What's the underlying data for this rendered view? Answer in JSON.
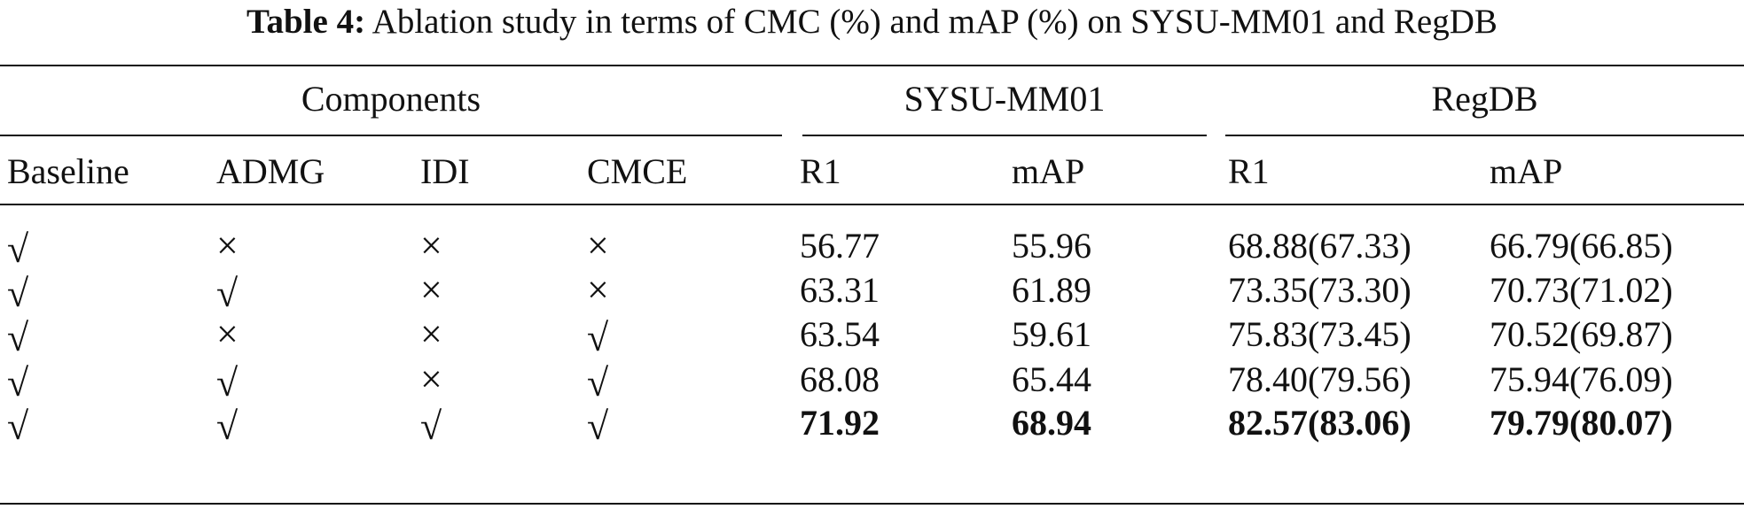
{
  "caption": {
    "label": "Table 4:",
    "text": "Ablation study in terms of CMC (%) and mAP (%) on SYSU-MM01 and RegDB"
  },
  "header": {
    "groups": [
      "Components",
      "SYSU-MM01",
      "RegDB"
    ],
    "columns": [
      "Baseline",
      "ADMG",
      "IDI",
      "CMCE",
      "R1",
      "mAP",
      "R1",
      "mAP"
    ]
  },
  "rows": [
    {
      "baseline": "√",
      "admg": "×",
      "idi": "×",
      "cmce": "×",
      "sysu_r1": "56.77",
      "sysu_map": "55.96",
      "regdb_r1": "68.88(67.33)",
      "regdb_map": "66.79(66.85)",
      "bold": false
    },
    {
      "baseline": "√",
      "admg": "√",
      "idi": "×",
      "cmce": "×",
      "sysu_r1": "63.31",
      "sysu_map": "61.89",
      "regdb_r1": "73.35(73.30)",
      "regdb_map": "70.73(71.02)",
      "bold": false
    },
    {
      "baseline": "√",
      "admg": "×",
      "idi": "×",
      "cmce": "√",
      "sysu_r1": "63.54",
      "sysu_map": "59.61",
      "regdb_r1": "75.83(73.45)",
      "regdb_map": "70.52(69.87)",
      "bold": false
    },
    {
      "baseline": "√",
      "admg": "√",
      "idi": "×",
      "cmce": "√",
      "sysu_r1": "68.08",
      "sysu_map": "65.44",
      "regdb_r1": "78.40(79.56)",
      "regdb_map": "75.94(76.09)",
      "bold": false
    },
    {
      "baseline": "√",
      "admg": "√",
      "idi": "√",
      "cmce": "√",
      "sysu_r1": "71.92",
      "sysu_map": "68.94",
      "regdb_r1": "82.57(83.06)",
      "regdb_map": "79.79(80.07)",
      "bold": true
    }
  ]
}
